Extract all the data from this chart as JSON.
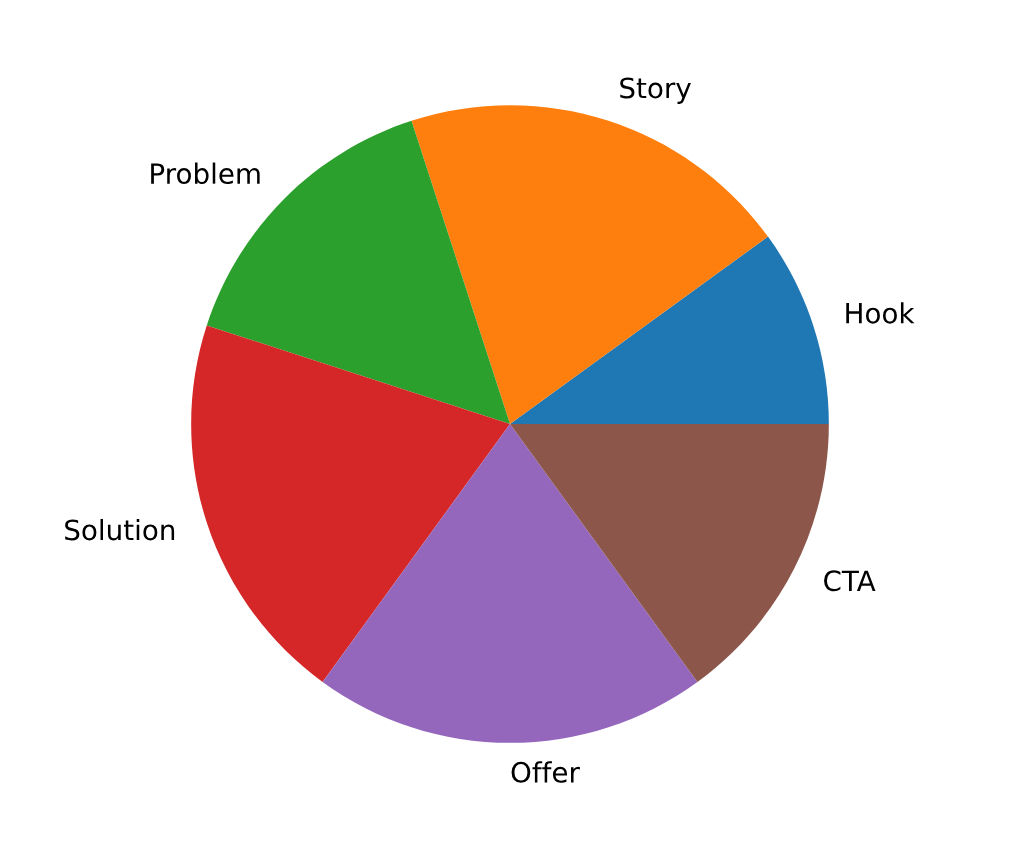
{
  "chart_data": {
    "type": "pie",
    "categories": [
      "Hook",
      "Story",
      "Problem",
      "Solution",
      "Offer",
      "CTA"
    ],
    "values": [
      10,
      20,
      15,
      20,
      20,
      15
    ],
    "colors": [
      "#1f77b4",
      "#ff7f0e",
      "#2ca02c",
      "#d62728",
      "#9467bd",
      "#8c564b"
    ]
  }
}
